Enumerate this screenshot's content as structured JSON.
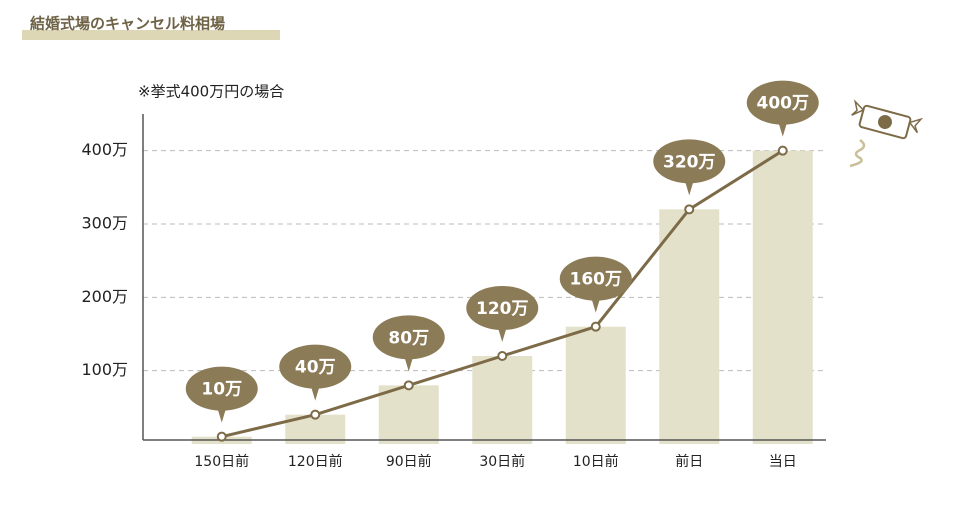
{
  "chart_data": {
    "type": "bar-line",
    "title": "結婚式場のキャンセル料相場",
    "subtitle": "※挙式400万円の場合",
    "categories": [
      "150日前",
      "120日前",
      "90日前",
      "30日前",
      "10日前",
      "前日",
      "当日"
    ],
    "values": [
      10,
      40,
      80,
      120,
      160,
      320,
      400
    ],
    "value_labels": [
      "10万",
      "40万",
      "80万",
      "120万",
      "160万",
      "320万",
      "400万"
    ],
    "bar_color": "#e4e1cb",
    "line_color": "#7d6b48",
    "label_color": "#8b7b57",
    "ylim": [
      0,
      450
    ],
    "yticks": [
      {
        "value": 100,
        "label": "100万"
      },
      {
        "value": 200,
        "label": "200万"
      },
      {
        "value": 300,
        "label": "300万"
      },
      {
        "value": 400,
        "label": "400万"
      }
    ],
    "grid": true
  }
}
